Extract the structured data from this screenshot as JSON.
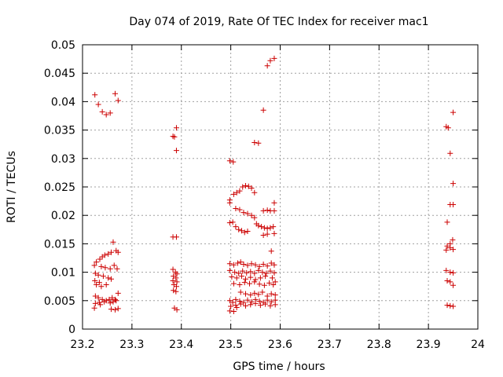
{
  "chart_data": {
    "type": "scatter",
    "title": "Day 074 of 2019, Rate Of TEC Index for receiver mac1",
    "xlabel": "GPS time / hours",
    "ylabel": "ROTI / TECUs",
    "xlim": [
      23.2,
      24.0
    ],
    "ylim": [
      0,
      0.05
    ],
    "grid": true,
    "marker": "plus",
    "marker_color": "#cc0000",
    "x_ticks": [
      "23.2",
      "23.3",
      "23.4",
      "23.5",
      "23.6",
      "23.7",
      "23.8",
      "23.9",
      "24"
    ],
    "x_tick_values": [
      23.2,
      23.3,
      23.4,
      23.5,
      23.6,
      23.7,
      23.8,
      23.9,
      24.0
    ],
    "y_ticks": [
      "0",
      "0.005",
      "0.01",
      "0.015",
      "0.02",
      "0.025",
      "0.03",
      "0.035",
      "0.04",
      "0.045",
      "0.05"
    ],
    "y_tick_values": [
      0,
      0.005,
      0.01,
      0.015,
      0.02,
      0.025,
      0.03,
      0.035,
      0.04,
      0.045,
      0.05
    ],
    "series": [
      {
        "name": "ROTI",
        "points": [
          [
            23.225,
            0.0412
          ],
          [
            23.232,
            0.0395
          ],
          [
            23.24,
            0.0382
          ],
          [
            23.248,
            0.0377
          ],
          [
            23.256,
            0.038
          ],
          [
            23.266,
            0.0414
          ],
          [
            23.272,
            0.0402
          ],
          [
            23.262,
            0.0153
          ],
          [
            23.268,
            0.0138
          ],
          [
            23.272,
            0.0135
          ],
          [
            23.258,
            0.0135
          ],
          [
            23.252,
            0.0132
          ],
          [
            23.245,
            0.013
          ],
          [
            23.24,
            0.0127
          ],
          [
            23.235,
            0.0123
          ],
          [
            23.228,
            0.0118
          ],
          [
            23.224,
            0.0112
          ],
          [
            23.238,
            0.011
          ],
          [
            23.246,
            0.0108
          ],
          [
            23.256,
            0.0106
          ],
          [
            23.264,
            0.0112
          ],
          [
            23.27,
            0.0106
          ],
          [
            23.226,
            0.0098
          ],
          [
            23.232,
            0.0095
          ],
          [
            23.242,
            0.0093
          ],
          [
            23.252,
            0.009
          ],
          [
            23.258,
            0.0088
          ],
          [
            23.225,
            0.0085
          ],
          [
            23.234,
            0.0082
          ],
          [
            23.228,
            0.0078
          ],
          [
            23.238,
            0.0075
          ],
          [
            23.248,
            0.0078
          ],
          [
            23.226,
            0.0058
          ],
          [
            23.232,
            0.0055
          ],
          [
            23.24,
            0.0052
          ],
          [
            23.248,
            0.005
          ],
          [
            23.254,
            0.0052
          ],
          [
            23.26,
            0.0055
          ],
          [
            23.266,
            0.0052
          ],
          [
            23.272,
            0.0063
          ],
          [
            23.226,
            0.0045
          ],
          [
            23.234,
            0.0047
          ],
          [
            23.244,
            0.0048
          ],
          [
            23.256,
            0.0046
          ],
          [
            23.262,
            0.0048
          ],
          [
            23.268,
            0.005
          ],
          [
            23.224,
            0.0037
          ],
          [
            23.236,
            0.0043
          ],
          [
            23.258,
            0.0035
          ],
          [
            23.266,
            0.0034
          ],
          [
            23.272,
            0.0036
          ],
          [
            23.383,
            0.0339
          ],
          [
            23.386,
            0.0338
          ],
          [
            23.39,
            0.0354
          ],
          [
            23.39,
            0.0314
          ],
          [
            23.383,
            0.0162
          ],
          [
            23.39,
            0.0162
          ],
          [
            23.383,
            0.0105
          ],
          [
            23.388,
            0.01
          ],
          [
            23.391,
            0.0097
          ],
          [
            23.384,
            0.0093
          ],
          [
            23.389,
            0.009
          ],
          [
            23.383,
            0.0085
          ],
          [
            23.391,
            0.0083
          ],
          [
            23.385,
            0.0078
          ],
          [
            23.39,
            0.0075
          ],
          [
            23.384,
            0.0068
          ],
          [
            23.389,
            0.0066
          ],
          [
            23.386,
            0.0037
          ],
          [
            23.391,
            0.0034
          ],
          [
            23.498,
            0.0296
          ],
          [
            23.505,
            0.0294
          ],
          [
            23.498,
            0.0227
          ],
          [
            23.506,
            0.0237
          ],
          [
            23.512,
            0.024
          ],
          [
            23.518,
            0.0243
          ],
          [
            23.524,
            0.025
          ],
          [
            23.53,
            0.0252
          ],
          [
            23.536,
            0.0251
          ],
          [
            23.542,
            0.0248
          ],
          [
            23.548,
            0.024
          ],
          [
            23.498,
            0.0222
          ],
          [
            23.51,
            0.0212
          ],
          [
            23.518,
            0.021
          ],
          [
            23.526,
            0.0205
          ],
          [
            23.534,
            0.0203
          ],
          [
            23.542,
            0.02
          ],
          [
            23.548,
            0.0196
          ],
          [
            23.552,
            0.0185
          ],
          [
            23.556,
            0.0182
          ],
          [
            23.562,
            0.018
          ],
          [
            23.568,
            0.0178
          ],
          [
            23.574,
            0.0177
          ],
          [
            23.58,
            0.0178
          ],
          [
            23.586,
            0.018
          ],
          [
            23.498,
            0.0187
          ],
          [
            23.504,
            0.0188
          ],
          [
            23.51,
            0.018
          ],
          [
            23.516,
            0.0175
          ],
          [
            23.522,
            0.0173
          ],
          [
            23.528,
            0.017
          ],
          [
            23.534,
            0.0172
          ],
          [
            23.566,
            0.0208
          ],
          [
            23.574,
            0.0209
          ],
          [
            23.58,
            0.0208
          ],
          [
            23.588,
            0.0222
          ],
          [
            23.588,
            0.0208
          ],
          [
            23.566,
            0.0165
          ],
          [
            23.574,
            0.0167
          ],
          [
            23.588,
            0.0168
          ],
          [
            23.582,
            0.0137
          ],
          [
            23.498,
            0.0115
          ],
          [
            23.506,
            0.0113
          ],
          [
            23.514,
            0.0116
          ],
          [
            23.52,
            0.0118
          ],
          [
            23.526,
            0.0114
          ],
          [
            23.534,
            0.0112
          ],
          [
            23.542,
            0.0115
          ],
          [
            23.55,
            0.0113
          ],
          [
            23.558,
            0.011
          ],
          [
            23.566,
            0.0114
          ],
          [
            23.574,
            0.0111
          ],
          [
            23.582,
            0.0116
          ],
          [
            23.588,
            0.0113
          ],
          [
            23.498,
            0.0103
          ],
          [
            23.508,
            0.01
          ],
          [
            23.516,
            0.0098
          ],
          [
            23.524,
            0.0102
          ],
          [
            23.532,
            0.0099
          ],
          [
            23.54,
            0.0101
          ],
          [
            23.548,
            0.0098
          ],
          [
            23.556,
            0.0103
          ],
          [
            23.564,
            0.01
          ],
          [
            23.572,
            0.0098
          ],
          [
            23.58,
            0.0102
          ],
          [
            23.588,
            0.0099
          ],
          [
            23.502,
            0.0092
          ],
          [
            23.512,
            0.009
          ],
          [
            23.522,
            0.0093
          ],
          [
            23.53,
            0.0088
          ],
          [
            23.54,
            0.0091
          ],
          [
            23.55,
            0.0087
          ],
          [
            23.56,
            0.009
          ],
          [
            23.57,
            0.0093
          ],
          [
            23.584,
            0.009
          ],
          [
            23.59,
            0.0083
          ],
          [
            23.506,
            0.008
          ],
          [
            23.518,
            0.0078
          ],
          [
            23.528,
            0.0082
          ],
          [
            23.538,
            0.008
          ],
          [
            23.548,
            0.0083
          ],
          [
            23.558,
            0.0079
          ],
          [
            23.568,
            0.0077
          ],
          [
            23.578,
            0.0081
          ],
          [
            23.586,
            0.0078
          ],
          [
            23.52,
            0.0065
          ],
          [
            23.53,
            0.0062
          ],
          [
            23.54,
            0.006
          ],
          [
            23.548,
            0.0063
          ],
          [
            23.556,
            0.0061
          ],
          [
            23.564,
            0.0065
          ],
          [
            23.574,
            0.0058
          ],
          [
            23.582,
            0.0062
          ],
          [
            23.59,
            0.006
          ],
          [
            23.498,
            0.005
          ],
          [
            23.504,
            0.0047
          ],
          [
            23.51,
            0.0052
          ],
          [
            23.518,
            0.0049
          ],
          [
            23.526,
            0.0047
          ],
          [
            23.534,
            0.0051
          ],
          [
            23.542,
            0.0048
          ],
          [
            23.55,
            0.0052
          ],
          [
            23.558,
            0.0049
          ],
          [
            23.566,
            0.0047
          ],
          [
            23.574,
            0.0051
          ],
          [
            23.582,
            0.0048
          ],
          [
            23.59,
            0.0051
          ],
          [
            23.5,
            0.004
          ],
          [
            23.51,
            0.0042
          ],
          [
            23.52,
            0.0044
          ],
          [
            23.53,
            0.0041
          ],
          [
            23.54,
            0.0043
          ],
          [
            23.55,
            0.0045
          ],
          [
            23.56,
            0.0042
          ],
          [
            23.57,
            0.0044
          ],
          [
            23.58,
            0.0041
          ],
          [
            23.59,
            0.0043
          ],
          [
            23.498,
            0.0032
          ],
          [
            23.506,
            0.0031
          ],
          [
            23.512,
            0.0038
          ],
          [
            23.548,
            0.0328
          ],
          [
            23.556,
            0.0327
          ],
          [
            23.566,
            0.0385
          ],
          [
            23.574,
            0.0463
          ],
          [
            23.58,
            0.0472
          ],
          [
            23.588,
            0.0476
          ],
          [
            23.936,
            0.0356
          ],
          [
            23.94,
            0.0354
          ],
          [
            23.944,
            0.0309
          ],
          [
            23.95,
            0.0381
          ],
          [
            23.938,
            0.0188
          ],
          [
            23.95,
            0.0256
          ],
          [
            23.944,
            0.0219
          ],
          [
            23.95,
            0.0219
          ],
          [
            23.949,
            0.0157
          ],
          [
            23.944,
            0.015
          ],
          [
            23.938,
            0.0146
          ],
          [
            23.944,
            0.0143
          ],
          [
            23.936,
            0.0139
          ],
          [
            23.95,
            0.014
          ],
          [
            23.936,
            0.0103
          ],
          [
            23.944,
            0.01
          ],
          [
            23.95,
            0.0099
          ],
          [
            23.938,
            0.0085
          ],
          [
            23.944,
            0.0083
          ],
          [
            23.95,
            0.0077
          ],
          [
            23.938,
            0.0042
          ],
          [
            23.944,
            0.0041
          ],
          [
            23.95,
            0.004
          ]
        ]
      }
    ]
  }
}
